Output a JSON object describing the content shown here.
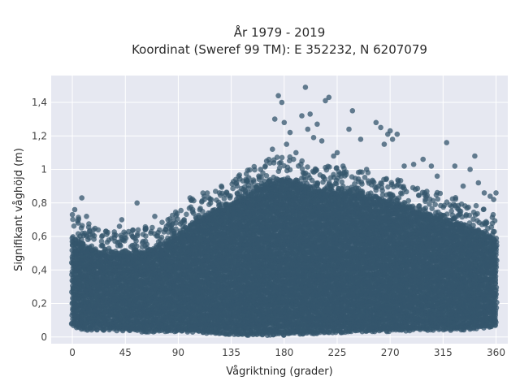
{
  "chart_data": {
    "type": "scatter",
    "title": "År 1979 - 2019",
    "subtitle": "Koordinat (Sweref 99 TM): E 352232, N 6207079",
    "xlabel": "Vågriktning (grader)",
    "ylabel": "Signifikant våghöjd (m)",
    "xlim": [
      -18,
      370
    ],
    "ylim": [
      -0.04,
      1.56
    ],
    "x_ticks": [
      0,
      45,
      90,
      135,
      180,
      225,
      270,
      315,
      360
    ],
    "x_tick_labels": [
      "0",
      "45",
      "90",
      "135",
      "180",
      "225",
      "270",
      "315",
      "360"
    ],
    "y_ticks": [
      0,
      0.2,
      0.4,
      0.6,
      0.8,
      1.0,
      1.2,
      1.4
    ],
    "y_tick_labels": [
      "0",
      "0,2",
      "0,4",
      "0,6",
      "0,8",
      "1",
      "1,2",
      "1,4"
    ],
    "grid": true,
    "legend": "none",
    "marker_color": "#34566c",
    "background_color": "#e6e8f1",
    "envelope_upper": [
      [
        0,
        0.6
      ],
      [
        10,
        0.55
      ],
      [
        20,
        0.52
      ],
      [
        30,
        0.5
      ],
      [
        45,
        0.5
      ],
      [
        60,
        0.52
      ],
      [
        75,
        0.55
      ],
      [
        90,
        0.62
      ],
      [
        105,
        0.7
      ],
      [
        120,
        0.76
      ],
      [
        135,
        0.8
      ],
      [
        150,
        0.86
      ],
      [
        165,
        0.92
      ],
      [
        180,
        0.95
      ],
      [
        195,
        0.92
      ],
      [
        210,
        0.88
      ],
      [
        225,
        0.88
      ],
      [
        240,
        0.86
      ],
      [
        255,
        0.84
      ],
      [
        270,
        0.82
      ],
      [
        285,
        0.78
      ],
      [
        300,
        0.74
      ],
      [
        315,
        0.72
      ],
      [
        330,
        0.68
      ],
      [
        345,
        0.64
      ],
      [
        360,
        0.6
      ]
    ],
    "envelope_lower": [
      [
        0,
        0.07
      ],
      [
        10,
        0.05
      ],
      [
        30,
        0.05
      ],
      [
        60,
        0.04
      ],
      [
        90,
        0.04
      ],
      [
        120,
        0.03
      ],
      [
        150,
        0.02
      ],
      [
        180,
        0.02
      ],
      [
        210,
        0.03
      ],
      [
        240,
        0.04
      ],
      [
        270,
        0.04
      ],
      [
        300,
        0.05
      ],
      [
        330,
        0.05
      ],
      [
        360,
        0.07
      ]
    ],
    "outliers": [
      [
        0,
        0.73
      ],
      [
        2,
        0.76
      ],
      [
        5,
        0.68
      ],
      [
        8,
        0.83
      ],
      [
        12,
        0.72
      ],
      [
        18,
        0.64
      ],
      [
        25,
        0.6
      ],
      [
        40,
        0.66
      ],
      [
        42,
        0.7
      ],
      [
        55,
        0.8
      ],
      [
        62,
        0.64
      ],
      [
        70,
        0.72
      ],
      [
        80,
        0.66
      ],
      [
        88,
        0.68
      ],
      [
        95,
        0.7
      ],
      [
        100,
        0.83
      ],
      [
        112,
        0.84
      ],
      [
        118,
        0.82
      ],
      [
        125,
        0.86
      ],
      [
        130,
        0.85
      ],
      [
        140,
        0.9
      ],
      [
        150,
        0.95
      ],
      [
        160,
        1.0
      ],
      [
        165,
        1.05
      ],
      [
        170,
        1.12
      ],
      [
        172,
        1.3
      ],
      [
        175,
        1.44
      ],
      [
        178,
        1.4
      ],
      [
        180,
        1.28
      ],
      [
        182,
        1.15
      ],
      [
        185,
        1.22
      ],
      [
        190,
        1.1
      ],
      [
        195,
        1.32
      ],
      [
        198,
        1.49
      ],
      [
        200,
        1.24
      ],
      [
        202,
        1.33
      ],
      [
        205,
        1.19
      ],
      [
        208,
        1.27
      ],
      [
        212,
        1.17
      ],
      [
        215,
        1.41
      ],
      [
        218,
        1.43
      ],
      [
        222,
        1.08
      ],
      [
        225,
        1.1
      ],
      [
        230,
        1.02
      ],
      [
        235,
        1.24
      ],
      [
        238,
        1.35
      ],
      [
        245,
        1.18
      ],
      [
        250,
        1.0
      ],
      [
        258,
        1.28
      ],
      [
        262,
        1.25
      ],
      [
        265,
        1.15
      ],
      [
        268,
        1.21
      ],
      [
        270,
        1.23
      ],
      [
        272,
        1.18
      ],
      [
        276,
        1.21
      ],
      [
        282,
        1.02
      ],
      [
        290,
        1.03
      ],
      [
        298,
        1.06
      ],
      [
        305,
        1.02
      ],
      [
        310,
        0.96
      ],
      [
        318,
        1.16
      ],
      [
        325,
        1.02
      ],
      [
        332,
        0.9
      ],
      [
        338,
        1.0
      ],
      [
        342,
        1.08
      ],
      [
        345,
        0.92
      ],
      [
        350,
        0.86
      ],
      [
        355,
        0.84
      ],
      [
        358,
        0.82
      ],
      [
        360,
        0.86
      ]
    ]
  }
}
